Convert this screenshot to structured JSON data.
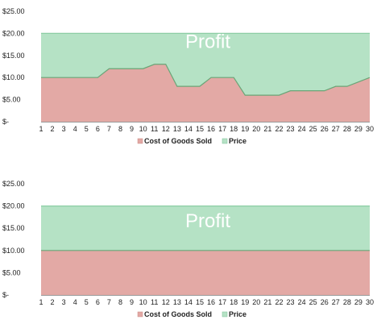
{
  "chart_data": [
    {
      "type": "area",
      "x": [
        1,
        2,
        3,
        4,
        5,
        6,
        7,
        8,
        9,
        10,
        11,
        12,
        13,
        14,
        15,
        16,
        17,
        18,
        19,
        20,
        21,
        22,
        23,
        24,
        25,
        26,
        27,
        28,
        29,
        30
      ],
      "series": [
        {
          "name": "Cost of Goods Sold",
          "values": [
            10,
            10,
            10,
            10,
            10,
            10,
            12,
            12,
            12,
            12,
            13,
            13,
            8,
            8,
            8,
            10,
            10,
            10,
            6,
            6,
            6,
            6,
            7,
            7,
            7,
            7,
            8,
            8,
            9,
            10
          ]
        },
        {
          "name": "Price",
          "values": [
            20,
            20,
            20,
            20,
            20,
            20,
            20,
            20,
            20,
            20,
            20,
            20,
            20,
            20,
            20,
            20,
            20,
            20,
            20,
            20,
            20,
            20,
            20,
            20,
            20,
            20,
            20,
            20,
            20,
            20
          ]
        }
      ],
      "y_ticks": [
        "$-",
        "$5.00",
        "$10.00",
        "$15.00",
        "$20.00",
        "$25.00"
      ],
      "ylim": [
        0,
        25
      ],
      "annotation": "Profit",
      "grid": false,
      "legend": "bottom"
    },
    {
      "type": "area",
      "x": [
        1,
        2,
        3,
        4,
        5,
        6,
        7,
        8,
        9,
        10,
        11,
        12,
        13,
        14,
        15,
        16,
        17,
        18,
        19,
        20,
        21,
        22,
        23,
        24,
        25,
        26,
        27,
        28,
        29,
        30
      ],
      "series": [
        {
          "name": "Cost of Goods Sold",
          "values": [
            10,
            10,
            10,
            10,
            10,
            10,
            10,
            10,
            10,
            10,
            10,
            10,
            10,
            10,
            10,
            10,
            10,
            10,
            10,
            10,
            10,
            10,
            10,
            10,
            10,
            10,
            10,
            10,
            10,
            10
          ]
        },
        {
          "name": "Price",
          "values": [
            20,
            20,
            20,
            20,
            20,
            20,
            20,
            20,
            20,
            20,
            20,
            20,
            20,
            20,
            20,
            20,
            20,
            20,
            20,
            20,
            20,
            20,
            20,
            20,
            20,
            20,
            20,
            20,
            20,
            20
          ]
        }
      ],
      "y_ticks": [
        "$-",
        "$5.00",
        "$10.00",
        "$15.00",
        "$20.00",
        "$25.00"
      ],
      "ylim": [
        0,
        25
      ],
      "annotation": "Profit",
      "grid": false,
      "legend": "bottom"
    }
  ],
  "colors": {
    "cost_fill": "#e3a9a5",
    "cost_line": "#6aa577",
    "price_fill": "#b5e2c5",
    "price_line": "#8dcea5",
    "axis": "#9a9a9a"
  }
}
